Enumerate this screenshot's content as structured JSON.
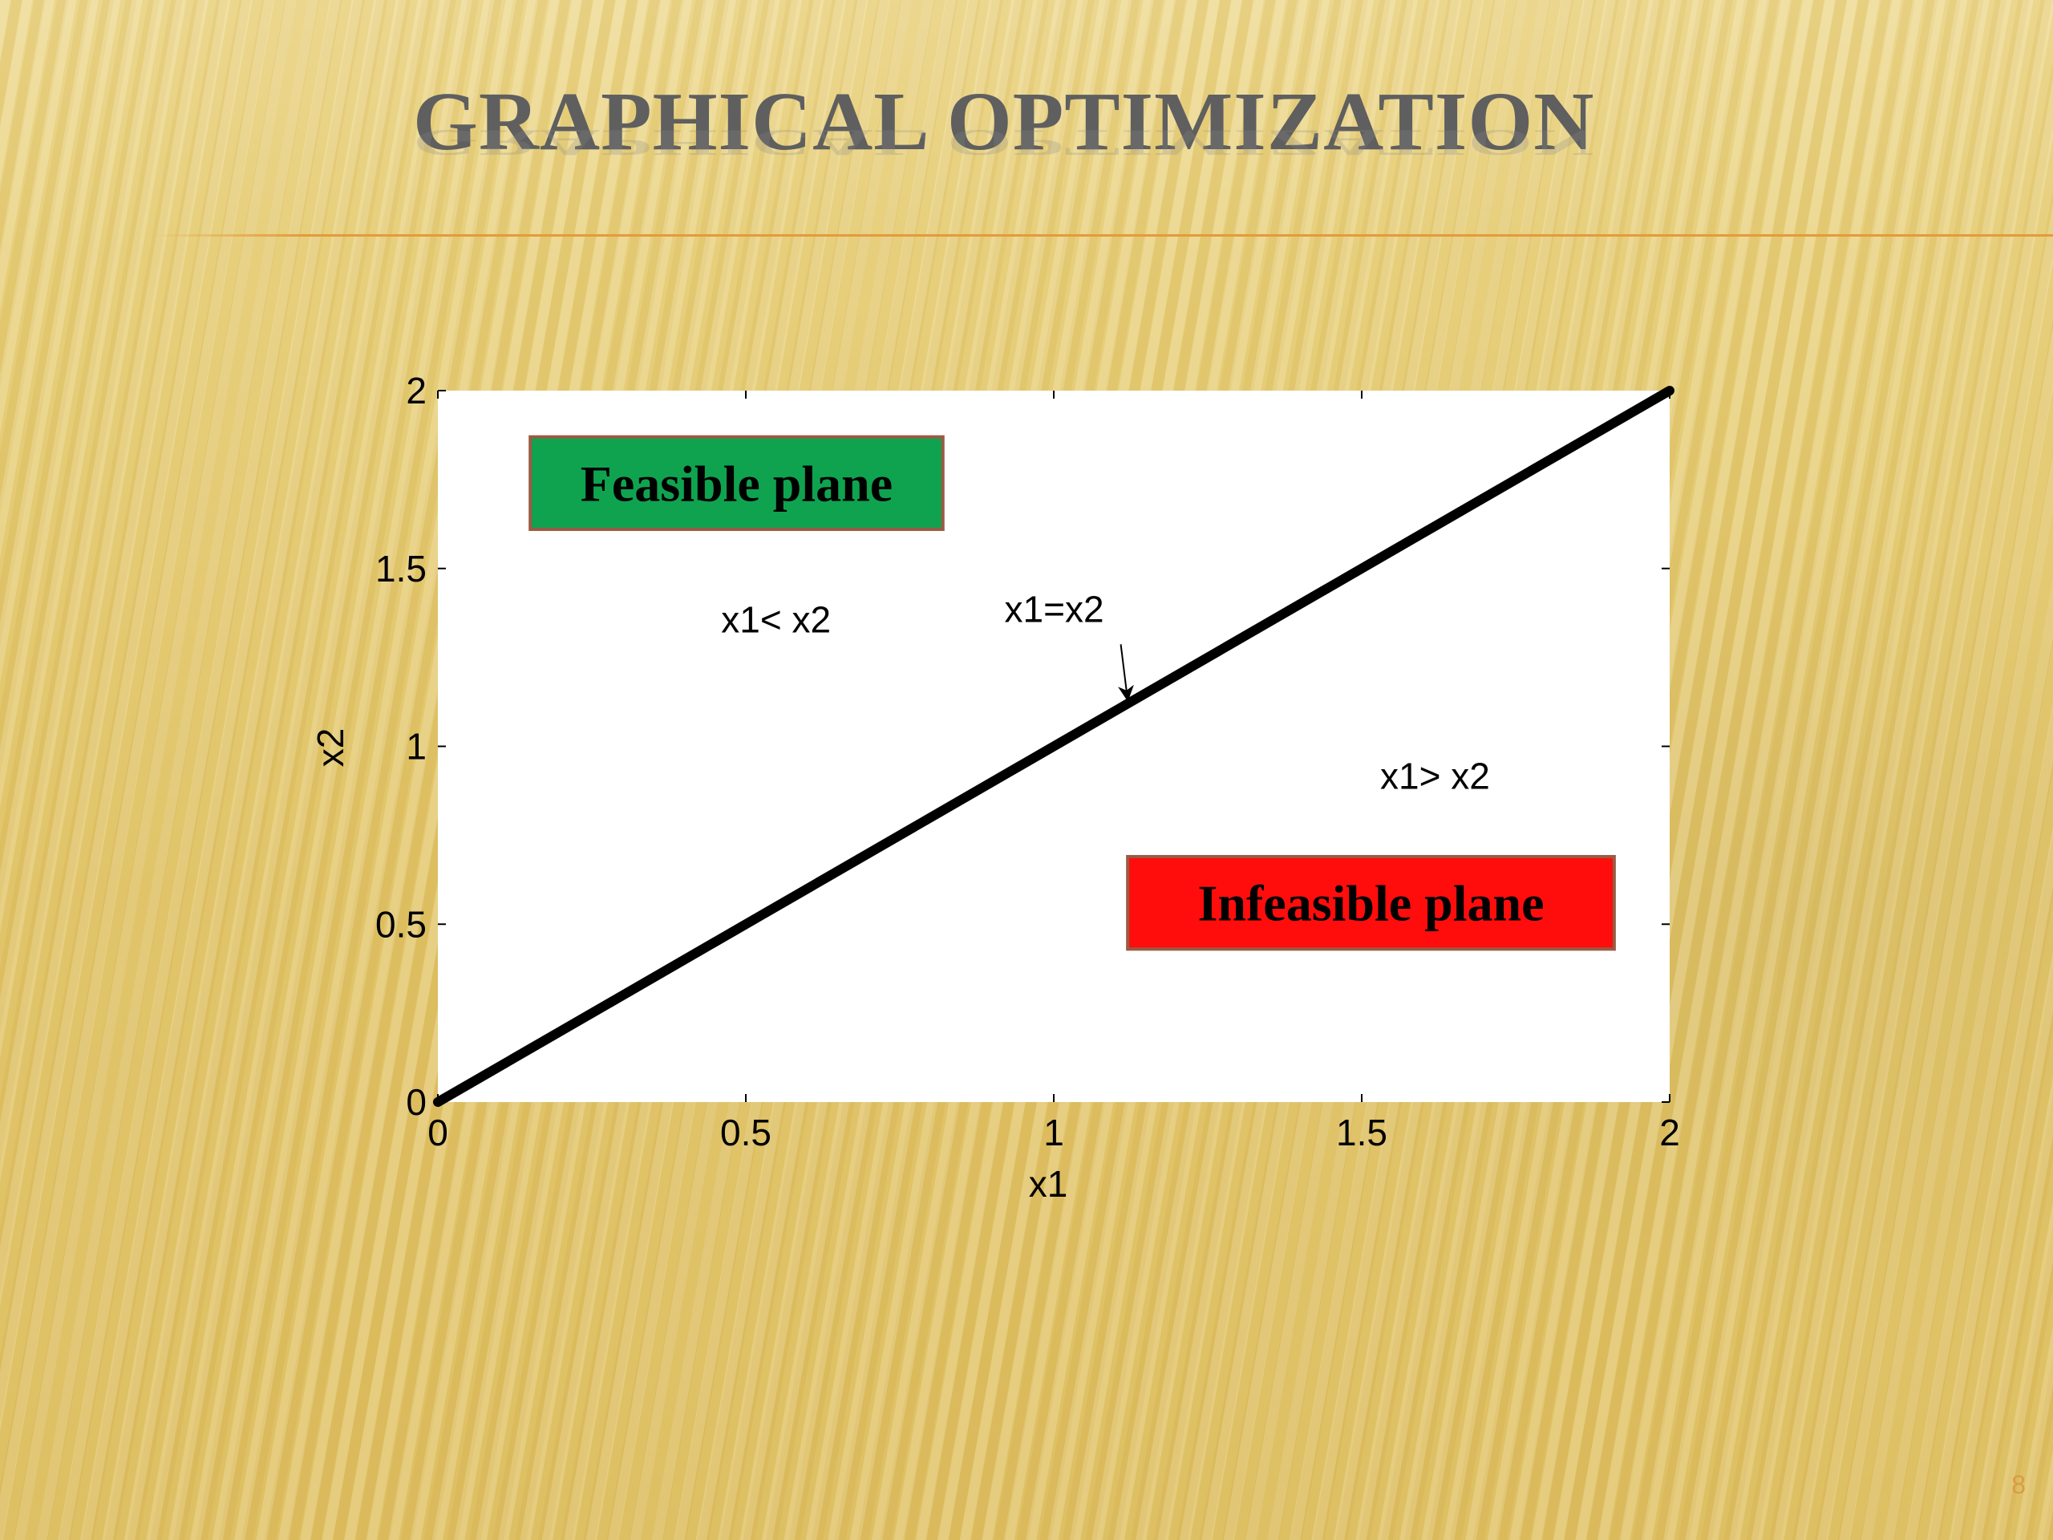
{
  "slide": {
    "title": "GRAPHICAL OPTIMIZATION",
    "page_number": "8",
    "rule_color": "#e59a3c"
  },
  "chart_data": {
    "type": "line",
    "xlabel": "x1",
    "ylabel": "x2",
    "xlim": [
      0,
      2
    ],
    "ylim": [
      0,
      2
    ],
    "x_ticks": [
      0,
      0.5,
      1,
      1.5,
      2
    ],
    "x_tick_labels": [
      "0",
      "0.5",
      "1",
      "1.5",
      "2"
    ],
    "y_ticks": [
      0,
      0.5,
      1,
      1.5,
      2
    ],
    "y_tick_labels": [
      "0",
      "0.5",
      "1",
      "1.5",
      "2"
    ],
    "grid": false,
    "series": [
      {
        "x": [
          0,
          2
        ],
        "y": [
          0,
          2
        ],
        "color": "#000000"
      }
    ],
    "annotations": [
      {
        "text": "x1< x2",
        "x": 0.46,
        "y": 1.32
      },
      {
        "text": "x1=x2",
        "x": 0.92,
        "y": 1.35,
        "arrow_to": [
          1.12,
          1.13
        ]
      },
      {
        "text": "x1> x2",
        "x": 1.53,
        "y": 0.88
      }
    ],
    "boxes": [
      {
        "text": "Feasible plane",
        "x": 0.15,
        "y": 1.87,
        "x2": 0.82,
        "y2": 1.61,
        "fill": "#0fa350",
        "border": "#9a5a43"
      },
      {
        "text": "Infeasible plane",
        "x": 1.12,
        "y": 0.69,
        "x2": 1.91,
        "y2": 0.43,
        "fill": "#ff0d0d",
        "border": "#9a5a43"
      }
    ]
  }
}
